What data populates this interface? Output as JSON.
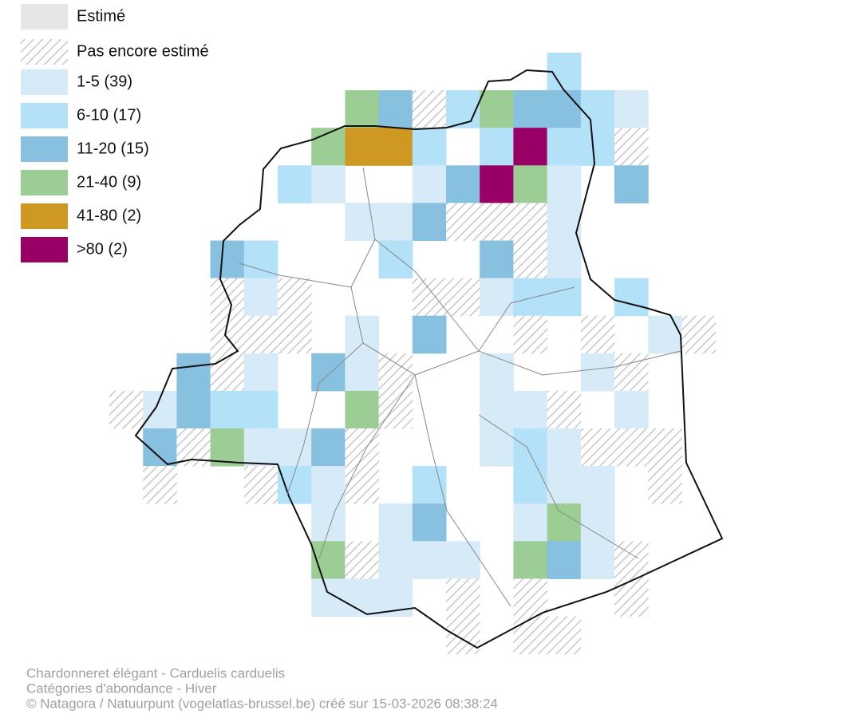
{
  "legend": [
    {
      "label": "Estimé",
      "color": "#e6e6e6"
    },
    {
      "label": "Pas encore estimé"
    },
    {
      "label": "1-5 (39)",
      "color": "#d6eaf8"
    },
    {
      "label": "6-10 (17)",
      "color": "#b3e1f7"
    },
    {
      "label": "11-20 (15)",
      "color": "#88c1df"
    },
    {
      "label": "21-40 (9)",
      "color": "#9ccd95"
    },
    {
      "label": "41-80 (2)",
      "color": "#cf9822"
    },
    {
      "label": ">80 (2)",
      "color": "#990066"
    }
  ],
  "footer": [
    "Chardonneret élégant - Carduelis carduelis",
    "Catégories d'abondance - Hiver",
    "© Natagora / Natuurpunt (vogelatlas-brussel.be) créé sur 15-03-2026 08:38:24"
  ]
}
